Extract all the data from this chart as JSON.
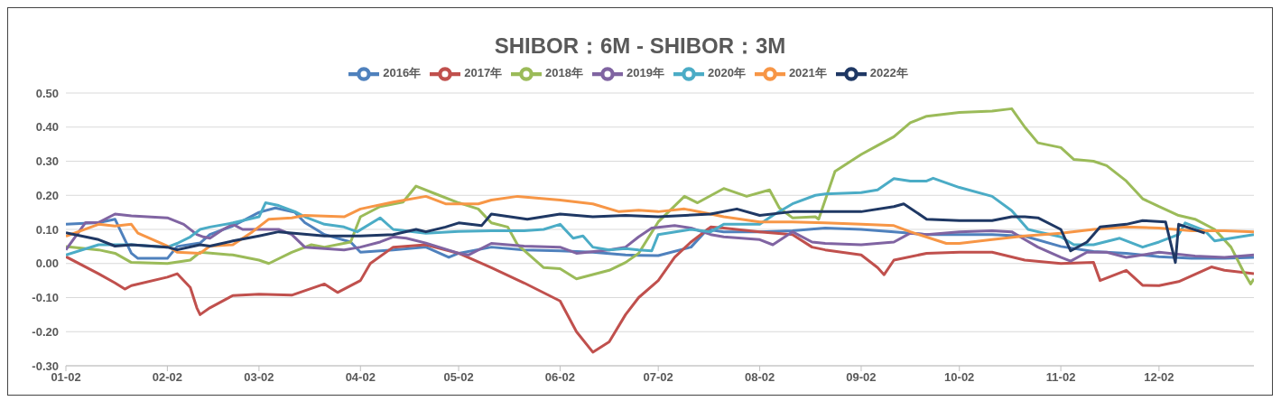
{
  "chart_data": {
    "type": "line",
    "title": "SHIBOR：6M - SHIBOR：3M",
    "xlim": [
      "--01-02",
      "--12-31"
    ],
    "xticks": [
      {
        "value": "--01-02",
        "label": "01-02"
      },
      {
        "value": "--02-02",
        "label": "02-02"
      },
      {
        "value": "--03-02",
        "label": "03-02"
      },
      {
        "value": "--04-02",
        "label": "04-02"
      },
      {
        "value": "--05-02",
        "label": "05-02"
      },
      {
        "value": "--06-02",
        "label": "06-02"
      },
      {
        "value": "--07-02",
        "label": "07-02"
      },
      {
        "value": "--08-02",
        "label": "08-02"
      },
      {
        "value": "--09-02",
        "label": "09-02"
      },
      {
        "value": "--10-02",
        "label": "10-02"
      },
      {
        "value": "--11-02",
        "label": "11-02"
      },
      {
        "value": "--12-02",
        "label": "12-02"
      }
    ],
    "ylim": [
      -0.3,
      0.5
    ],
    "yticks": [
      {
        "value": -0.3,
        "label": "-0.30"
      },
      {
        "value": -0.2,
        "label": "-0.20"
      },
      {
        "value": -0.1,
        "label": "-0.10"
      },
      {
        "value": 0,
        "label": "0.00"
      },
      {
        "value": 0.1,
        "label": "0.10"
      },
      {
        "value": 0.2,
        "label": "0.20"
      },
      {
        "value": 0.3,
        "label": "0.30"
      },
      {
        "value": 0.4,
        "label": "0.40"
      },
      {
        "value": 0.5,
        "label": "0.50"
      }
    ],
    "grid": "y",
    "legend": "top",
    "marker": "none",
    "line_style": "solid",
    "series": [
      {
        "name": "2016年",
        "color": "#4f81bd",
        "x": [
          "--01-02",
          "--01-12",
          "--01-17",
          "--01-22",
          "--01-24",
          "--02-02",
          "--02-05",
          "--02-12",
          "--02-15",
          "--02-22",
          "--03-02",
          "--03-07",
          "--03-13",
          "--03-16",
          "--03-22",
          "--03-30",
          "--04-02",
          "--04-12",
          "--04-22",
          "--04-29",
          "--05-02",
          "--05-12",
          "--05-22",
          "--06-02",
          "--06-12",
          "--06-22",
          "--06-26",
          "--07-02",
          "--07-12",
          "--07-17",
          "--07-22",
          "--08-02",
          "--08-12",
          "--08-22",
          "--09-02",
          "--09-12",
          "--09-22",
          "--10-02",
          "--10-12",
          "--10-22",
          "--11-02",
          "--11-12",
          "--11-22",
          "--12-02",
          "--12-12",
          "--12-22",
          "--12-31"
        ],
        "values": [
          0.115,
          0.12,
          0.13,
          0.03,
          0.015,
          0.015,
          0.05,
          0.06,
          0.085,
          0.11,
          0.15,
          0.163,
          0.15,
          0.12,
          0.085,
          0.063,
          0.033,
          0.04,
          0.048,
          0.018,
          0.03,
          0.048,
          0.04,
          0.037,
          0.033,
          0.025,
          0.024,
          0.023,
          0.048,
          0.1,
          0.093,
          0.093,
          0.096,
          0.104,
          0.1,
          0.093,
          0.085,
          0.085,
          0.085,
          0.08,
          0.05,
          0.035,
          0.03,
          0.02,
          0.015,
          0.015,
          0.018
        ]
      },
      {
        "name": "2017年",
        "color": "#c0504d",
        "x": [
          "--01-02",
          "--01-12",
          "--01-17",
          "--01-20",
          "--01-22",
          "--02-02",
          "--02-05",
          "--02-09",
          "--02-11",
          "--02-12",
          "--02-15",
          "--02-22",
          "--03-02",
          "--03-12",
          "--03-22",
          "--03-26",
          "--04-02",
          "--04-05",
          "--04-12",
          "--04-22",
          "--05-02",
          "--05-12",
          "--05-22",
          "--06-02",
          "--06-07",
          "--06-12",
          "--06-17",
          "--06-22",
          "--06-26",
          "--07-02",
          "--07-07",
          "--07-12",
          "--07-18",
          "--07-22",
          "--08-02",
          "--08-12",
          "--08-18",
          "--08-22",
          "--09-02",
          "--09-07",
          "--09-09",
          "--09-12",
          "--09-22",
          "--10-02",
          "--10-12",
          "--10-22",
          "--11-02",
          "--11-12",
          "--11-14",
          "--11-22",
          "--11-27",
          "--12-02",
          "--12-08",
          "--12-18",
          "--12-22",
          "--12-31"
        ],
        "values": [
          0.02,
          -0.03,
          -0.057,
          -0.075,
          -0.065,
          -0.04,
          -0.03,
          -0.07,
          -0.13,
          -0.15,
          -0.13,
          -0.094,
          -0.09,
          -0.093,
          -0.06,
          -0.085,
          -0.05,
          0,
          0.048,
          0.055,
          0.03,
          -0.012,
          -0.057,
          -0.11,
          -0.2,
          -0.26,
          -0.23,
          -0.15,
          -0.1,
          -0.05,
          0.018,
          0.063,
          0.107,
          0.104,
          0.093,
          0.085,
          0.048,
          0.04,
          0.025,
          -0.012,
          -0.033,
          0.01,
          0.03,
          0.033,
          0.033,
          0.01,
          0,
          0.003,
          -0.05,
          -0.02,
          -0.064,
          -0.065,
          -0.053,
          -0.01,
          -0.02,
          -0.03
        ]
      },
      {
        "name": "2018年",
        "color": "#9bbb59",
        "x": [
          "--01-02",
          "--01-12",
          "--01-17",
          "--01-22",
          "--02-02",
          "--02-09",
          "--02-12",
          "--02-22",
          "--03-02",
          "--03-05",
          "--03-12",
          "--03-18",
          "--03-22",
          "--03-30",
          "--04-02",
          "--04-08",
          "--04-15",
          "--04-19",
          "--04-25",
          "--05-02",
          "--05-08",
          "--05-12",
          "--05-17",
          "--05-20",
          "--05-28",
          "--06-02",
          "--06-07",
          "--06-17",
          "--06-22",
          "--06-26",
          "--07-02",
          "--07-10",
          "--07-14",
          "--07-22",
          "--07-29",
          "--08-05",
          "--08-08",
          "--08-12",
          "--08-19",
          "--08-20",
          "--08-25",
          "--09-02",
          "--09-07",
          "--09-12",
          "--09-17",
          "--09-22",
          "--10-02",
          "--10-12",
          "--10-18",
          "--10-22",
          "--10-26",
          "--11-02",
          "--11-06",
          "--11-12",
          "--11-16",
          "--11-22",
          "--11-27",
          "--12-02",
          "--12-08",
          "--12-13",
          "--12-19",
          "--12-24",
          "--12-28",
          "--12-30",
          "--12-31"
        ],
        "values": [
          0.05,
          0.04,
          0.03,
          0.003,
          0,
          0.01,
          0.033,
          0.025,
          0.01,
          0,
          0.033,
          0.055,
          0.048,
          0.063,
          0.137,
          0.167,
          0.18,
          0.227,
          0.204,
          0.178,
          0.16,
          0.119,
          0.107,
          0.055,
          -0.012,
          -0.015,
          -0.045,
          -0.02,
          0.003,
          0.03,
          0.122,
          0.197,
          0.178,
          0.22,
          0.197,
          0.216,
          0.163,
          0.134,
          0.137,
          0.13,
          0.27,
          0.32,
          0.346,
          0.372,
          0.413,
          0.432,
          0.443,
          0.447,
          0.454,
          0.4,
          0.354,
          0.34,
          0.305,
          0.3,
          0.287,
          0.242,
          0.19,
          0.167,
          0.141,
          0.13,
          0.1,
          0.048,
          -0.027,
          -0.06,
          -0.045
        ]
      },
      {
        "name": "2019年",
        "color": "#8064a2",
        "x": [
          "--01-02",
          "--01-08",
          "--01-12",
          "--01-17",
          "--01-22",
          "--02-02",
          "--02-07",
          "--02-11",
          "--02-13",
          "--02-15",
          "--02-19",
          "--02-22",
          "--02-25",
          "--03-02",
          "--03-08",
          "--03-12",
          "--03-16",
          "--03-22",
          "--03-28",
          "--04-02",
          "--04-08",
          "--04-12",
          "--04-16",
          "--04-22",
          "--05-02",
          "--05-05",
          "--05-12",
          "--05-22",
          "--06-02",
          "--06-07",
          "--06-17",
          "--06-22",
          "--06-26",
          "--06-30",
          "--07-07",
          "--07-12",
          "--07-18",
          "--07-22",
          "--08-02",
          "--08-06",
          "--08-12",
          "--08-18",
          "--08-22",
          "--09-02",
          "--09-12",
          "--09-17",
          "--09-22",
          "--10-02",
          "--10-12",
          "--10-18",
          "--10-22",
          "--10-26",
          "--11-02",
          "--11-05",
          "--11-10",
          "--11-16",
          "--11-22",
          "--12-02",
          "--12-13",
          "--12-22",
          "--12-31"
        ],
        "values": [
          0.04,
          0.12,
          0.12,
          0.145,
          0.14,
          0.134,
          0.115,
          0.085,
          0.078,
          0.074,
          0.1,
          0.115,
          0.1,
          0.1,
          0.1,
          0.085,
          0.048,
          0.044,
          0.04,
          0.048,
          0.063,
          0.078,
          0.074,
          0.06,
          0.03,
          0.025,
          0.059,
          0.051,
          0.048,
          0.03,
          0.04,
          0.048,
          0.078,
          0.104,
          0.111,
          0.104,
          0.085,
          0.078,
          0.07,
          0.055,
          0.093,
          0.063,
          0.059,
          0.055,
          0.063,
          0.089,
          0.085,
          0.093,
          0.096,
          0.093,
          0.07,
          0.048,
          0.018,
          0.007,
          0.033,
          0.033,
          0.018,
          0.033,
          0.022,
          0.018,
          0.025
        ]
      },
      {
        "name": "2020年",
        "color": "#4bacc6",
        "x": [
          "--01-02",
          "--01-12",
          "--01-17",
          "--01-22",
          "--02-02",
          "--02-05",
          "--02-09",
          "--02-12",
          "--02-15",
          "--02-22",
          "--03-02",
          "--03-04",
          "--03-08",
          "--03-13",
          "--03-16",
          "--03-22",
          "--03-28",
          "--04-01",
          "--04-08",
          "--04-12",
          "--04-22",
          "--05-02",
          "--05-12",
          "--05-22",
          "--05-28",
          "--06-02",
          "--06-06",
          "--06-09",
          "--06-12",
          "--06-17",
          "--06-22",
          "--06-26",
          "--06-30",
          "--07-02",
          "--07-12",
          "--07-18",
          "--07-22",
          "--08-02",
          "--08-06",
          "--08-12",
          "--08-19",
          "--08-22",
          "--09-02",
          "--09-07",
          "--09-12",
          "--09-17",
          "--09-22",
          "--09-24",
          "--10-02",
          "--10-12",
          "--10-18",
          "--10-23",
          "--10-26",
          "--11-02",
          "--11-06",
          "--11-12",
          "--11-20",
          "--11-27",
          "--12-02",
          "--12-08",
          "--12-10",
          "--12-16",
          "--12-19",
          "--12-24",
          "--12-31"
        ],
        "values": [
          0.025,
          0.055,
          0.055,
          0.055,
          0.048,
          0.059,
          0.078,
          0.1,
          0.107,
          0.119,
          0.137,
          0.178,
          0.17,
          0.152,
          0.137,
          0.115,
          0.107,
          0.093,
          0.134,
          0.1,
          0.089,
          0.094,
          0.096,
          0.096,
          0.1,
          0.115,
          0.074,
          0.081,
          0.048,
          0.04,
          0.044,
          0.04,
          0.037,
          0.085,
          0.1,
          0.093,
          0.115,
          0.115,
          0.141,
          0.175,
          0.2,
          0.204,
          0.208,
          0.216,
          0.249,
          0.242,
          0.242,
          0.25,
          0.223,
          0.197,
          0.155,
          0.1,
          0.093,
          0.078,
          0.055,
          0.055,
          0.074,
          0.048,
          0.063,
          0.085,
          0.119,
          0.096,
          0.066,
          0.074,
          0.085
        ]
      },
      {
        "name": "2021年",
        "color": "#f79646",
        "x": [
          "--01-02",
          "--01-12",
          "--01-17",
          "--01-22",
          "--01-24",
          "--02-02",
          "--02-05",
          "--02-12",
          "--02-15",
          "--02-22",
          "--02-28",
          "--03-05",
          "--03-12",
          "--03-16",
          "--03-28",
          "--04-02",
          "--04-12",
          "--04-22",
          "--04-28",
          "--05-02",
          "--05-08",
          "--05-12",
          "--05-20",
          "--06-02",
          "--06-12",
          "--06-20",
          "--06-26",
          "--07-02",
          "--07-10",
          "--07-18",
          "--07-22",
          "--08-02",
          "--08-12",
          "--08-22",
          "--09-02",
          "--09-12",
          "--09-17",
          "--09-28",
          "--10-02",
          "--10-12",
          "--10-22",
          "--11-02",
          "--11-12",
          "--11-22",
          "--12-02",
          "--12-12",
          "--12-22",
          "--12-31"
        ],
        "values": [
          0.08,
          0.115,
          0.11,
          0.115,
          0.089,
          0.051,
          0.033,
          0.03,
          0.051,
          0.055,
          0.093,
          0.13,
          0.134,
          0.141,
          0.137,
          0.16,
          0.18,
          0.197,
          0.175,
          0.175,
          0.175,
          0.186,
          0.197,
          0.186,
          0.175,
          0.152,
          0.156,
          0.152,
          0.16,
          0.145,
          0.137,
          0.122,
          0.122,
          0.119,
          0.115,
          0.111,
          0.093,
          0.059,
          0.059,
          0.07,
          0.081,
          0.089,
          0.1,
          0.107,
          0.104,
          0.096,
          0.096,
          0.093
        ]
      },
      {
        "name": "2022年",
        "color": "#1f3864",
        "x": [
          "--01-02",
          "--01-12",
          "--01-17",
          "--01-22",
          "--02-02",
          "--02-05",
          "--02-12",
          "--02-15",
          "--02-22",
          "--03-02",
          "--03-08",
          "--03-22",
          "--04-02",
          "--04-12",
          "--04-19",
          "--04-22",
          "--04-28",
          "--05-02",
          "--05-09",
          "--05-12",
          "--05-23",
          "--06-02",
          "--06-12",
          "--06-22",
          "--07-02",
          "--07-18",
          "--07-26",
          "--08-02",
          "--08-12",
          "--08-22",
          "--09-02",
          "--09-12",
          "--09-15",
          "--09-22",
          "--10-02",
          "--10-12",
          "--10-18",
          "--10-22",
          "--10-26",
          "--11-02",
          "--11-05",
          "--11-10",
          "--11-14",
          "--11-22",
          "--11-27",
          "--12-04",
          "--12-07",
          "--12-08",
          "--12-16"
        ],
        "values": [
          0.09,
          0.07,
          0.051,
          0.055,
          0.048,
          0.04,
          0.055,
          0.051,
          0.066,
          0.081,
          0.093,
          0.081,
          0.081,
          0.085,
          0.1,
          0.093,
          0.107,
          0.119,
          0.111,
          0.145,
          0.13,
          0.145,
          0.137,
          0.141,
          0.137,
          0.145,
          0.16,
          0.141,
          0.152,
          0.152,
          0.152,
          0.167,
          0.175,
          0.13,
          0.126,
          0.126,
          0.137,
          0.137,
          0.134,
          0.1,
          0.037,
          0.063,
          0.107,
          0.115,
          0.126,
          0.122,
          0.003,
          0.115,
          0.089
        ]
      }
    ]
  }
}
